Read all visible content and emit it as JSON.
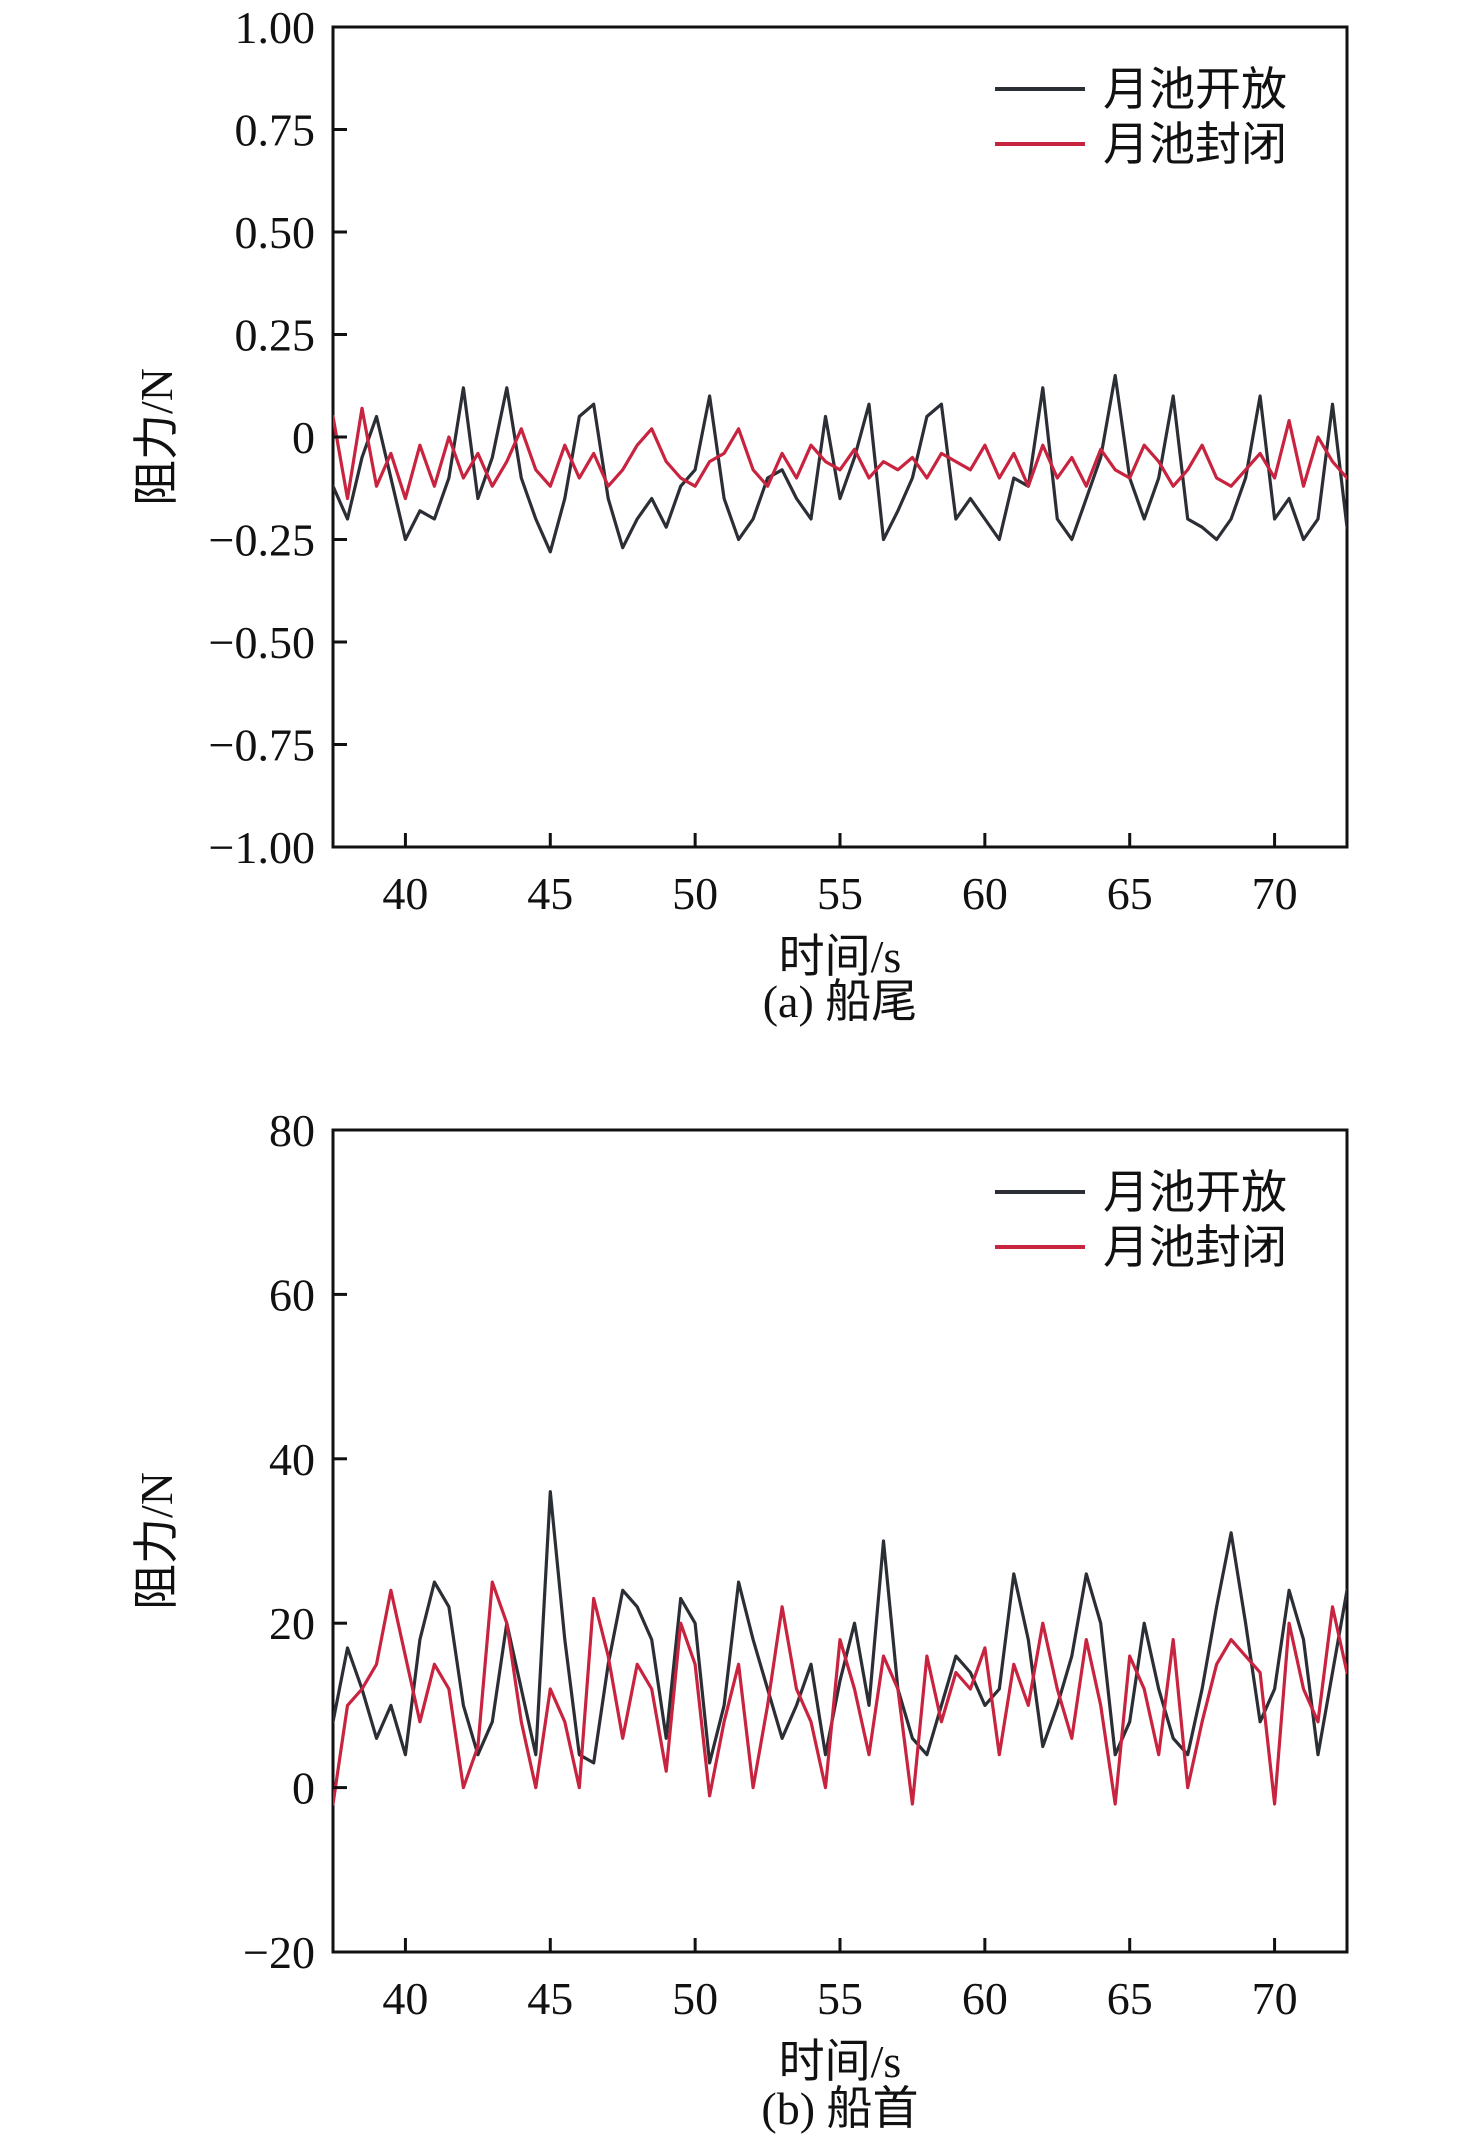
{
  "chart_data": [
    {
      "type": "line",
      "caption": "(a) 船尾",
      "xlabel": "时间/s",
      "ylabel": "阻力/N",
      "xlim": [
        37.5,
        72.5
      ],
      "ylim": [
        -1.0,
        1.0
      ],
      "xticks": [
        40,
        45,
        50,
        55,
        60,
        65,
        70
      ],
      "xtick_labels": [
        "40",
        "45",
        "50",
        "55",
        "60",
        "65",
        "70"
      ],
      "yticks": [
        -1.0,
        -0.75,
        -0.5,
        -0.25,
        0,
        0.25,
        0.5,
        0.75,
        1.0
      ],
      "ytick_labels": [
        "−1.00",
        "−0.75",
        "−0.50",
        "−0.25",
        "0",
        "0.25",
        "0.50",
        "0.75",
        "1.00"
      ],
      "legend_position": "top-right",
      "grid": false,
      "series": [
        {
          "name": "月池开放",
          "color": "#2b2f35",
          "x": [
            37.5,
            38.0,
            38.5,
            39.0,
            39.5,
            40.0,
            40.5,
            41.0,
            41.5,
            42.0,
            42.5,
            43.0,
            43.5,
            44.0,
            44.5,
            45.0,
            45.5,
            46.0,
            46.5,
            47.0,
            47.5,
            48.0,
            48.5,
            49.0,
            49.5,
            50.0,
            50.5,
            51.0,
            51.5,
            52.0,
            52.5,
            53.0,
            53.5,
            54.0,
            54.5,
            55.0,
            55.5,
            56.0,
            56.5,
            57.0,
            57.5,
            58.0,
            58.5,
            59.0,
            59.5,
            60.0,
            60.5,
            61.0,
            61.5,
            62.0,
            62.5,
            63.0,
            63.5,
            64.0,
            64.5,
            65.0,
            65.5,
            66.0,
            66.5,
            67.0,
            67.5,
            68.0,
            68.5,
            69.0,
            69.5,
            70.0,
            70.5,
            71.0,
            71.5,
            72.0,
            72.5
          ],
          "y": [
            -0.12,
            -0.2,
            -0.05,
            0.05,
            -0.1,
            -0.25,
            -0.18,
            -0.2,
            -0.1,
            0.12,
            -0.15,
            -0.05,
            0.12,
            -0.1,
            -0.2,
            -0.28,
            -0.15,
            0.05,
            0.08,
            -0.15,
            -0.27,
            -0.2,
            -0.15,
            -0.22,
            -0.12,
            -0.08,
            0.1,
            -0.15,
            -0.25,
            -0.2,
            -0.1,
            -0.08,
            -0.15,
            -0.2,
            0.05,
            -0.15,
            -0.05,
            0.08,
            -0.25,
            -0.18,
            -0.1,
            0.05,
            0.08,
            -0.2,
            -0.15,
            -0.2,
            -0.25,
            -0.1,
            -0.12,
            0.12,
            -0.2,
            -0.25,
            -0.15,
            -0.05,
            0.15,
            -0.1,
            -0.2,
            -0.1,
            0.1,
            -0.2,
            -0.22,
            -0.25,
            -0.2,
            -0.1,
            0.1,
            -0.2,
            -0.15,
            -0.25,
            -0.2,
            0.08,
            -0.22
          ]
        },
        {
          "name": "月池封闭",
          "color": "#c8233f",
          "x": [
            37.5,
            38.0,
            38.5,
            39.0,
            39.5,
            40.0,
            40.5,
            41.0,
            41.5,
            42.0,
            42.5,
            43.0,
            43.5,
            44.0,
            44.5,
            45.0,
            45.5,
            46.0,
            46.5,
            47.0,
            47.5,
            48.0,
            48.5,
            49.0,
            49.5,
            50.0,
            50.5,
            51.0,
            51.5,
            52.0,
            52.5,
            53.0,
            53.5,
            54.0,
            54.5,
            55.0,
            55.5,
            56.0,
            56.5,
            57.0,
            57.5,
            58.0,
            58.5,
            59.0,
            59.5,
            60.0,
            60.5,
            61.0,
            61.5,
            62.0,
            62.5,
            63.0,
            63.5,
            64.0,
            64.5,
            65.0,
            65.5,
            66.0,
            66.5,
            67.0,
            67.5,
            68.0,
            68.5,
            69.0,
            69.5,
            70.0,
            70.5,
            71.0,
            71.5,
            72.0,
            72.5
          ],
          "y": [
            0.05,
            -0.15,
            0.07,
            -0.12,
            -0.04,
            -0.15,
            -0.02,
            -0.12,
            0.0,
            -0.1,
            -0.04,
            -0.12,
            -0.06,
            0.02,
            -0.08,
            -0.12,
            -0.02,
            -0.1,
            -0.04,
            -0.12,
            -0.08,
            -0.02,
            0.02,
            -0.06,
            -0.1,
            -0.12,
            -0.06,
            -0.04,
            0.02,
            -0.08,
            -0.12,
            -0.04,
            -0.1,
            -0.02,
            -0.06,
            -0.08,
            -0.03,
            -0.1,
            -0.06,
            -0.08,
            -0.05,
            -0.1,
            -0.04,
            -0.06,
            -0.08,
            -0.02,
            -0.1,
            -0.04,
            -0.12,
            -0.02,
            -0.1,
            -0.05,
            -0.12,
            -0.03,
            -0.08,
            -0.1,
            -0.02,
            -0.06,
            -0.12,
            -0.08,
            -0.02,
            -0.1,
            -0.12,
            -0.08,
            -0.04,
            -0.1,
            0.04,
            -0.12,
            0.0,
            -0.06,
            -0.1
          ]
        }
      ]
    },
    {
      "type": "line",
      "caption": "(b) 船首",
      "xlabel": "时间/s",
      "ylabel": "阻力/N",
      "xlim": [
        37.5,
        72.5
      ],
      "ylim": [
        -20,
        80
      ],
      "xticks": [
        40,
        45,
        50,
        55,
        60,
        65,
        70
      ],
      "xtick_labels": [
        "40",
        "45",
        "50",
        "55",
        "60",
        "65",
        "70"
      ],
      "yticks": [
        -20,
        0,
        20,
        40,
        60,
        80
      ],
      "ytick_labels": [
        "−20",
        "0",
        "20",
        "40",
        "60",
        "80"
      ],
      "legend_position": "top-right",
      "grid": false,
      "series": [
        {
          "name": "月池开放",
          "color": "#2b2f35",
          "x": [
            37.5,
            38.0,
            38.5,
            39.0,
            39.5,
            40.0,
            40.5,
            41.0,
            41.5,
            42.0,
            42.5,
            43.0,
            43.5,
            44.0,
            44.5,
            45.0,
            45.5,
            46.0,
            46.5,
            47.0,
            47.5,
            48.0,
            48.5,
            49.0,
            49.5,
            50.0,
            50.5,
            51.0,
            51.5,
            52.0,
            52.5,
            53.0,
            53.5,
            54.0,
            54.5,
            55.0,
            55.5,
            56.0,
            56.5,
            57.0,
            57.5,
            58.0,
            58.5,
            59.0,
            59.5,
            60.0,
            60.5,
            61.0,
            61.5,
            62.0,
            62.5,
            63.0,
            63.5,
            64.0,
            64.5,
            65.0,
            65.5,
            66.0,
            66.5,
            67.0,
            67.5,
            68.0,
            68.5,
            69.0,
            69.5,
            70.0,
            70.5,
            71.0,
            71.5,
            72.0,
            72.5
          ],
          "y": [
            8,
            17,
            12,
            6,
            10,
            4,
            18,
            25,
            22,
            10,
            4,
            8,
            20,
            12,
            4,
            36,
            18,
            4,
            3,
            15,
            24,
            22,
            18,
            6,
            23,
            20,
            3,
            10,
            25,
            18,
            12,
            6,
            10,
            15,
            4,
            13,
            20,
            10,
            30,
            12,
            6,
            4,
            10,
            16,
            14,
            10,
            12,
            26,
            18,
            5,
            10,
            16,
            26,
            20,
            4,
            8,
            20,
            12,
            6,
            4,
            12,
            22,
            31,
            20,
            8,
            12,
            24,
            18,
            4,
            14,
            24
          ]
        },
        {
          "name": "月池封闭",
          "color": "#c8233f",
          "x": [
            37.5,
            38.0,
            38.5,
            39.0,
            39.5,
            40.0,
            40.5,
            41.0,
            41.5,
            42.0,
            42.5,
            43.0,
            43.5,
            44.0,
            44.5,
            45.0,
            45.5,
            46.0,
            46.5,
            47.0,
            47.5,
            48.0,
            48.5,
            49.0,
            49.5,
            50.0,
            50.5,
            51.0,
            51.5,
            52.0,
            52.5,
            53.0,
            53.5,
            54.0,
            54.5,
            55.0,
            55.5,
            56.0,
            56.5,
            57.0,
            57.5,
            58.0,
            58.5,
            59.0,
            59.5,
            60.0,
            60.5,
            61.0,
            61.5,
            62.0,
            62.5,
            63.0,
            63.5,
            64.0,
            64.5,
            65.0,
            65.5,
            66.0,
            66.5,
            67.0,
            67.5,
            68.0,
            68.5,
            69.0,
            69.5,
            70.0,
            70.5,
            71.0,
            71.5,
            72.0,
            72.5
          ],
          "y": [
            -2,
            10,
            12,
            15,
            24,
            16,
            8,
            15,
            12,
            0,
            5,
            25,
            20,
            8,
            0,
            12,
            8,
            0,
            23,
            16,
            6,
            15,
            12,
            2,
            20,
            15,
            -1,
            8,
            15,
            0,
            10,
            22,
            12,
            8,
            0,
            18,
            12,
            4,
            16,
            12,
            -2,
            16,
            8,
            14,
            12,
            17,
            4,
            15,
            10,
            20,
            12,
            6,
            18,
            10,
            -2,
            16,
            12,
            4,
            18,
            0,
            8,
            15,
            18,
            16,
            14,
            -2,
            20,
            12,
            8,
            22,
            14
          ]
        }
      ]
    }
  ]
}
